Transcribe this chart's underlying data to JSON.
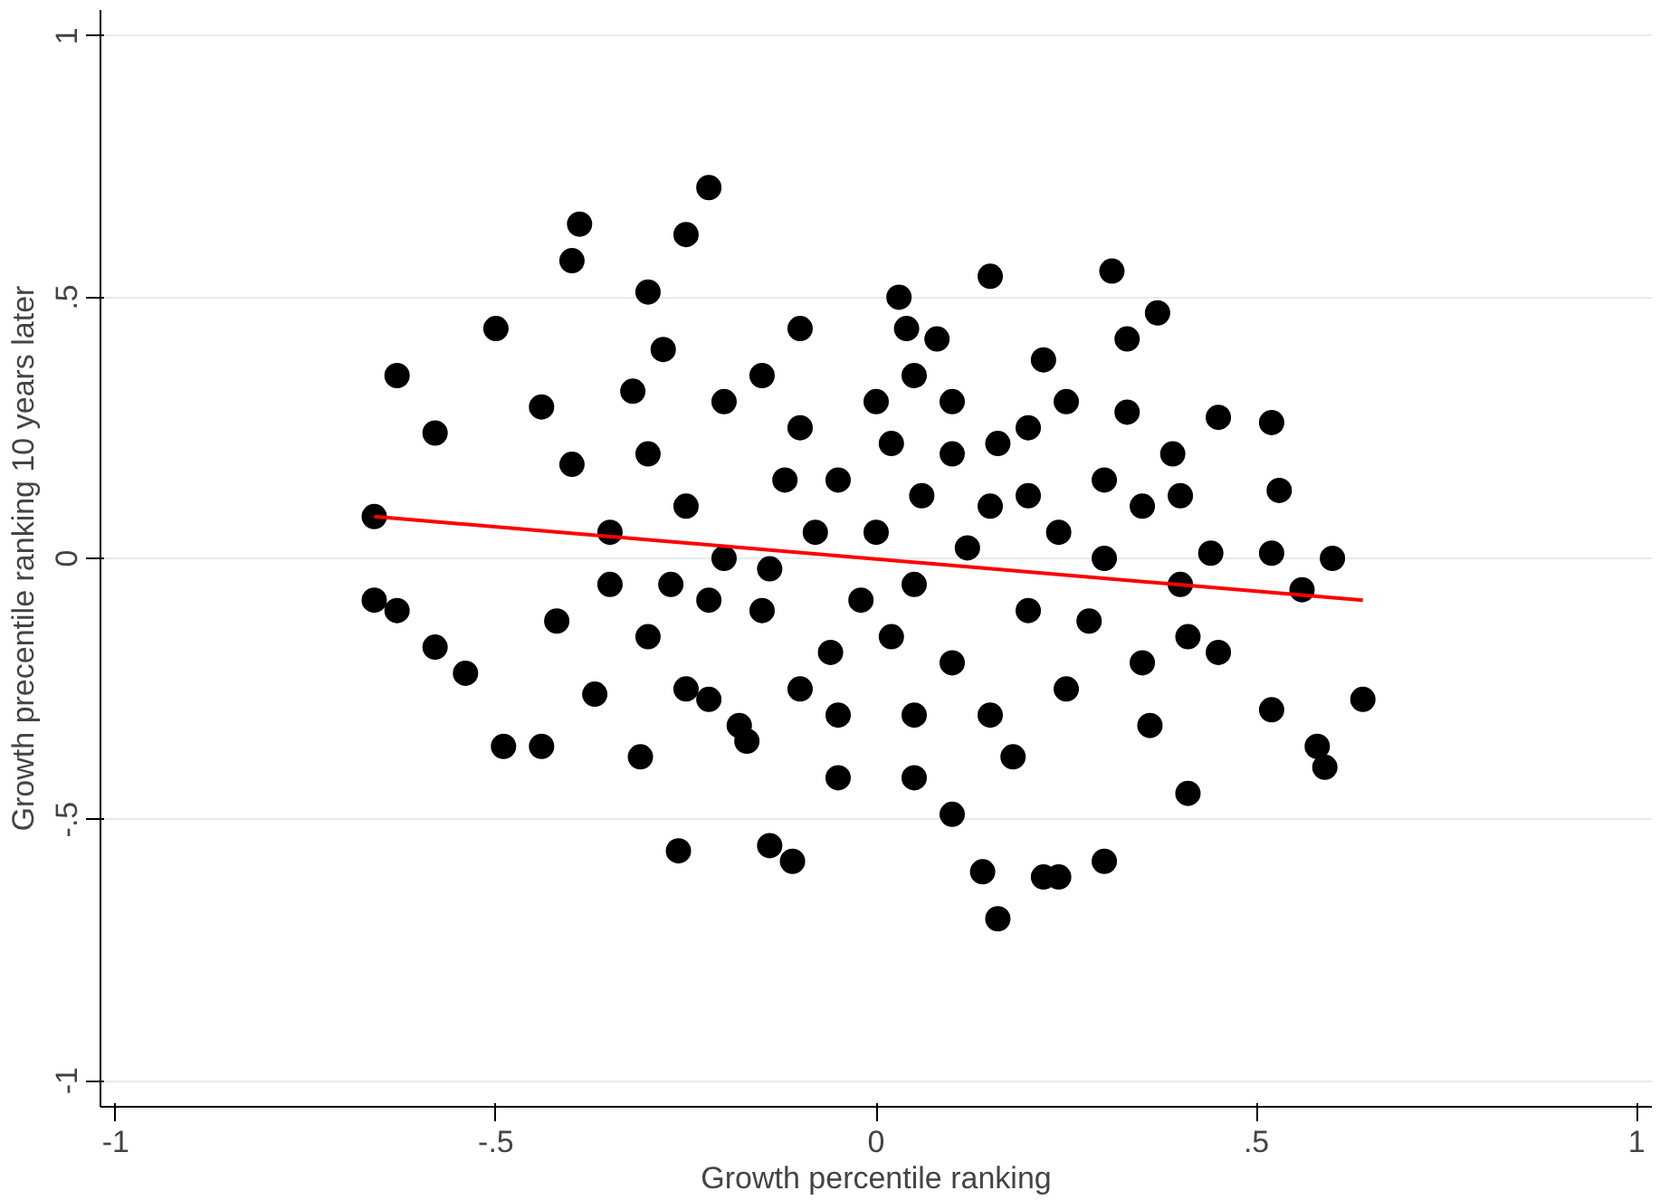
{
  "chart_data": {
    "type": "scatter",
    "xlabel": "Growth percentile ranking",
    "ylabel": "Growth precentile ranking 10 years later",
    "xlim": [
      -1.02,
      1.02
    ],
    "ylim": [
      -1.05,
      1.05
    ],
    "xticks": [
      -1,
      {
        "value": -0.5,
        "label": "-.5"
      },
      0,
      {
        "value": 0.5,
        "label": ".5"
      },
      1
    ],
    "yticks": [
      -1,
      {
        "value": -0.5,
        "label": "-.5"
      },
      0,
      {
        "value": 0.5,
        "label": ".5"
      },
      1
    ],
    "grid": "y",
    "marker": "circle",
    "series": [
      {
        "color": "#000000",
        "x": [
          -0.66,
          -0.66,
          -0.63,
          -0.63,
          -0.58,
          -0.58,
          -0.54,
          -0.5,
          -0.49,
          -0.44,
          -0.44,
          -0.39,
          -0.4,
          -0.37,
          -0.3,
          -0.31,
          -0.22,
          -0.26,
          -0.25,
          -0.14,
          -0.11,
          -0.1,
          0.03,
          0.04,
          0.15,
          0.16,
          0.14,
          0.22,
          0.24,
          0.3,
          0.31,
          0.33,
          0.37,
          0.45,
          0.52,
          0.53,
          0.52,
          0.6,
          0.56,
          0.58,
          0.59,
          0.64,
          0.52,
          0.41,
          0.39,
          0.44,
          0.41,
          0.1,
          0.05,
          -0.05,
          -0.17,
          -0.22,
          -0.3,
          -0.25,
          -0.2,
          -0.15,
          -0.1,
          -0.05,
          0,
          0.05,
          0.1,
          0.15,
          0.2,
          0.25,
          0.3,
          0.35,
          -0.3,
          -0.25,
          -0.2,
          -0.15,
          -0.1,
          -0.05,
          0,
          0.05,
          0.1,
          0.15,
          0.2,
          0.25,
          0.3,
          0.35,
          -0.35,
          -0.35,
          0.4,
          0.4,
          -0.28,
          -0.18,
          0.08,
          0.22,
          0.18,
          -0.08,
          0.02,
          0.12,
          -0.12,
          0.28,
          -0.22,
          0.06,
          -0.02,
          0.16,
          0.33,
          -0.4,
          -0.42,
          0.45,
          0.02,
          -0.32,
          0.24,
          -0.06,
          0.1,
          -0.27,
          0.36,
          0.05,
          -0.14,
          0.2
        ],
        "values": [
          0.08,
          -0.08,
          0.35,
          -0.1,
          0.24,
          -0.17,
          -0.22,
          0.44,
          -0.36,
          0.29,
          -0.36,
          0.64,
          0.57,
          -0.26,
          0.51,
          -0.38,
          0.71,
          -0.56,
          0.62,
          -0.55,
          -0.58,
          0.44,
          0.5,
          0.44,
          0.54,
          -0.69,
          -0.6,
          -0.61,
          -0.61,
          -0.58,
          0.55,
          0.42,
          0.47,
          0.27,
          0.26,
          0.13,
          0.01,
          0,
          -0.06,
          -0.36,
          -0.4,
          -0.27,
          -0.29,
          -0.45,
          0.2,
          0.01,
          -0.15,
          -0.49,
          -0.42,
          -0.42,
          -0.35,
          -0.27,
          0.2,
          0.1,
          0,
          -0.1,
          0.25,
          0.15,
          0.05,
          -0.05,
          0.2,
          0.1,
          -0.1,
          0.3,
          0,
          -0.2,
          -0.15,
          -0.25,
          0.3,
          0.35,
          -0.25,
          -0.3,
          0.3,
          0.35,
          -0.2,
          -0.3,
          0.25,
          -0.25,
          0.15,
          0.1,
          0.05,
          -0.05,
          -0.05,
          0.12,
          0.4,
          -0.32,
          0.42,
          0.38,
          -0.38,
          0.05,
          -0.15,
          0.02,
          0.15,
          -0.12,
          -0.08,
          0.12,
          -0.08,
          0.22,
          0.28,
          0.18,
          -0.12,
          -0.18,
          0.22,
          0.32,
          0.05,
          -0.18,
          0.3,
          -0.05,
          -0.32,
          -0.3,
          -0.02,
          0.12
        ]
      },
      {
        "type": "line",
        "marker": "none",
        "color": "#ff0000",
        "x": [
          -0.66,
          0.64
        ],
        "values": [
          0.08,
          -0.08
        ]
      }
    ]
  }
}
